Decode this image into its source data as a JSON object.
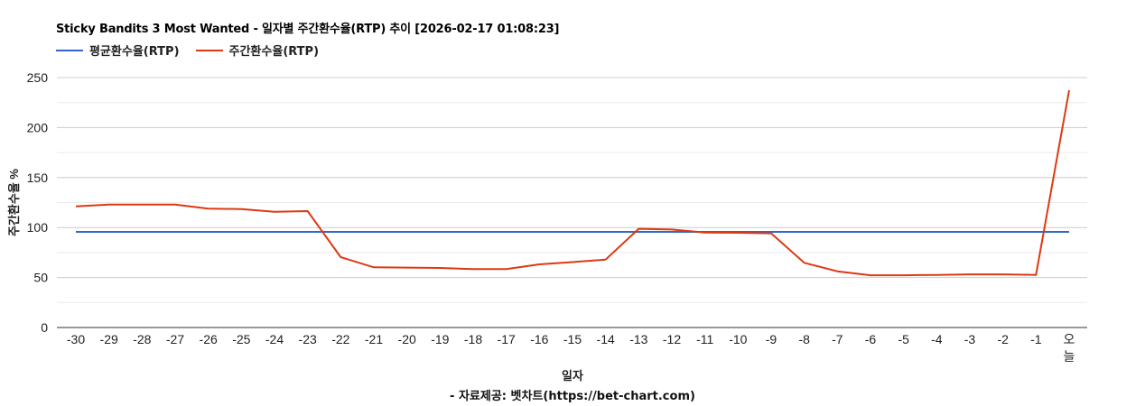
{
  "chart_data": {
    "type": "line",
    "title": "Sticky Bandits 3 Most Wanted - 일자별 주간환수율(RTP) 추이 [2026-02-17 01:08:23]",
    "xlabel": "일자",
    "ylabel": "주간환수율 %",
    "credit": "- 자료제공: 벳차트(https://bet-chart.com)",
    "ylim": [
      0,
      250
    ],
    "yticks": [
      0,
      50,
      100,
      150,
      200,
      250
    ],
    "grid": true,
    "legend_position": "top",
    "categories": [
      "-30",
      "-29",
      "-28",
      "-27",
      "-26",
      "-25",
      "-24",
      "-23",
      "-22",
      "-21",
      "-20",
      "-19",
      "-18",
      "-17",
      "-16",
      "-15",
      "-14",
      "-13",
      "-12",
      "-11",
      "-10",
      "-9",
      "-8",
      "-7",
      "-6",
      "-5",
      "-4",
      "-3",
      "-2",
      "-1",
      "오늘"
    ],
    "series": [
      {
        "name": "평균환수율(RTP)",
        "color": "#3366cc",
        "values": [
          95.7,
          95.7,
          95.7,
          95.7,
          95.7,
          95.7,
          95.7,
          95.7,
          95.7,
          95.7,
          95.7,
          95.7,
          95.7,
          95.7,
          95.7,
          95.7,
          95.7,
          95.7,
          95.7,
          95.7,
          95.7,
          95.7,
          95.7,
          95.7,
          95.7,
          95.7,
          95.7,
          95.7,
          95.7,
          95.7,
          95.7
        ]
      },
      {
        "name": "주간환수율(RTP)",
        "color": "#dc3912",
        "values": [
          121.2,
          123.0,
          123.0,
          123.0,
          118.9,
          118.5,
          115.8,
          116.4,
          70.4,
          60.2,
          59.9,
          59.6,
          58.4,
          58.4,
          63.2,
          65.4,
          68.0,
          98.7,
          98.0,
          95.0,
          94.8,
          94.2,
          64.7,
          56.2,
          52.3,
          52.3,
          52.6,
          53.2,
          53.2,
          52.6,
          237.4
        ]
      }
    ]
  },
  "legend": {
    "items": [
      {
        "label": "평균환수율(RTP)",
        "color": "#3366cc"
      },
      {
        "label": "주간환수율(RTP)",
        "color": "#dc3912"
      }
    ]
  }
}
